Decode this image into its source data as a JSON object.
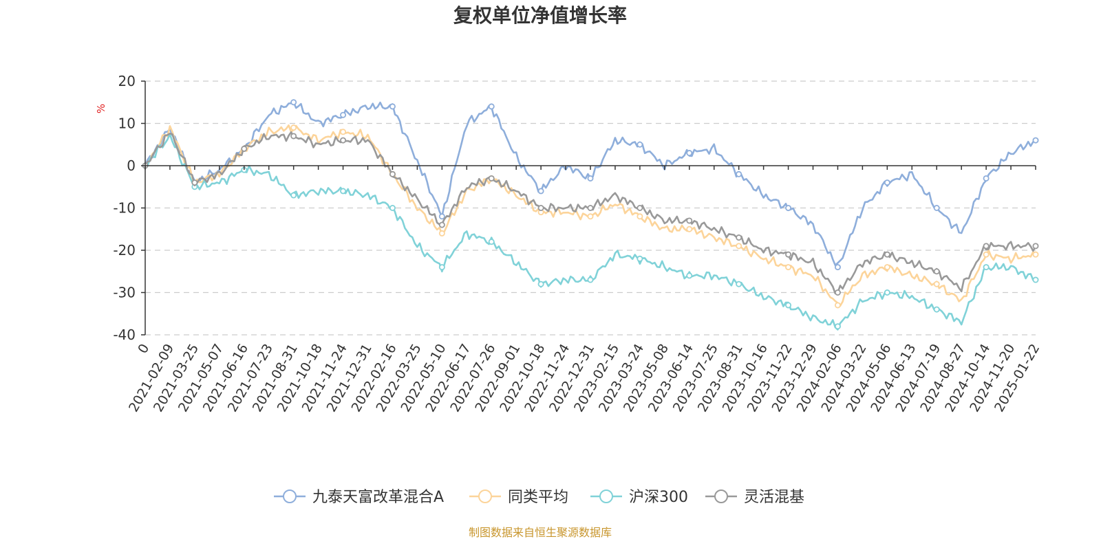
{
  "chart_data": {
    "type": "line",
    "title": "复权单位净值增长率",
    "ylabel": "%",
    "ylim": [
      -40,
      20
    ],
    "yticks": [
      20,
      10,
      0,
      -10,
      -20,
      -30,
      -40
    ],
    "grid": true,
    "legend_position": "bottom",
    "x_tick_labels": [
      "0",
      "2021-02-09",
      "2021-03-25",
      "2021-05-07",
      "2021-06-16",
      "2021-07-23",
      "2021-08-31",
      "2021-10-18",
      "2021-11-24",
      "2021-12-31",
      "2022-02-16",
      "2022-03-25",
      "2022-05-10",
      "2022-06-17",
      "2022-07-26",
      "2022-09-01",
      "2022-10-18",
      "2022-11-24",
      "2022-12-31",
      "2023-02-15",
      "2023-03-24",
      "2023-05-08",
      "2023-06-14",
      "2023-07-25",
      "2023-08-31",
      "2023-10-16",
      "2023-11-22",
      "2023-12-29",
      "2024-02-06",
      "2024-03-22",
      "2024-05-06",
      "2024-06-13",
      "2024-07-19",
      "2024-08-27",
      "2024-10-14",
      "2024-11-20",
      "2025-01-22"
    ],
    "x_index": [
      0,
      1,
      2,
      3,
      4,
      5,
      6,
      7,
      8,
      9,
      10,
      11,
      12,
      13,
      14,
      15,
      16,
      17,
      18,
      19,
      20,
      21,
      22,
      23,
      24,
      25,
      26,
      27,
      28,
      29,
      30,
      31,
      32,
      33,
      34,
      35,
      36
    ],
    "series": [
      {
        "name": "九泰天富改革混合A",
        "color": "#8eaedb",
        "values": [
          0,
          9,
          -4,
          -1,
          4,
          12,
          15,
          10,
          12,
          14,
          14,
          1,
          -12,
          10,
          14,
          2,
          -6,
          0,
          -3,
          6,
          5,
          0,
          3,
          4,
          -2,
          -7,
          -10,
          -14,
          -24,
          -10,
          -4,
          -2,
          -10,
          -16,
          -3,
          3,
          6
        ]
      },
      {
        "name": "同类平均",
        "color": "#fcd49a",
        "values": [
          0,
          9,
          -4,
          -2,
          4,
          8,
          9,
          6,
          8,
          7,
          -2,
          -10,
          -16,
          -6,
          -3,
          -7,
          -11,
          -11,
          -12,
          -9,
          -12,
          -15,
          -15,
          -17,
          -19,
          -22,
          -24,
          -26,
          -33,
          -26,
          -24,
          -26,
          -28,
          -32,
          -21,
          -22,
          -21
        ]
      },
      {
        "name": "沪深300",
        "color": "#80d2d8",
        "values": [
          0,
          7,
          -5,
          -4,
          -1,
          -2,
          -7,
          -6,
          -6,
          -7,
          -10,
          -19,
          -24,
          -16,
          -18,
          -23,
          -28,
          -27,
          -27,
          -21,
          -22,
          -24,
          -26,
          -26,
          -28,
          -31,
          -33,
          -36,
          -38,
          -32,
          -30,
          -31,
          -34,
          -37,
          -24,
          -24,
          -27
        ]
      },
      {
        "name": "灵活混基",
        "color": "#999999",
        "values": [
          0,
          8,
          -4,
          -2,
          4,
          7,
          7,
          5,
          6,
          6,
          -2,
          -8,
          -14,
          -5,
          -3,
          -6,
          -10,
          -10,
          -10,
          -7,
          -10,
          -13,
          -13,
          -15,
          -17,
          -20,
          -21,
          -23,
          -30,
          -23,
          -21,
          -23,
          -25,
          -29,
          -19,
          -19,
          -19
        ]
      }
    ]
  },
  "source_text": "制图数据来自恒生聚源数据库"
}
